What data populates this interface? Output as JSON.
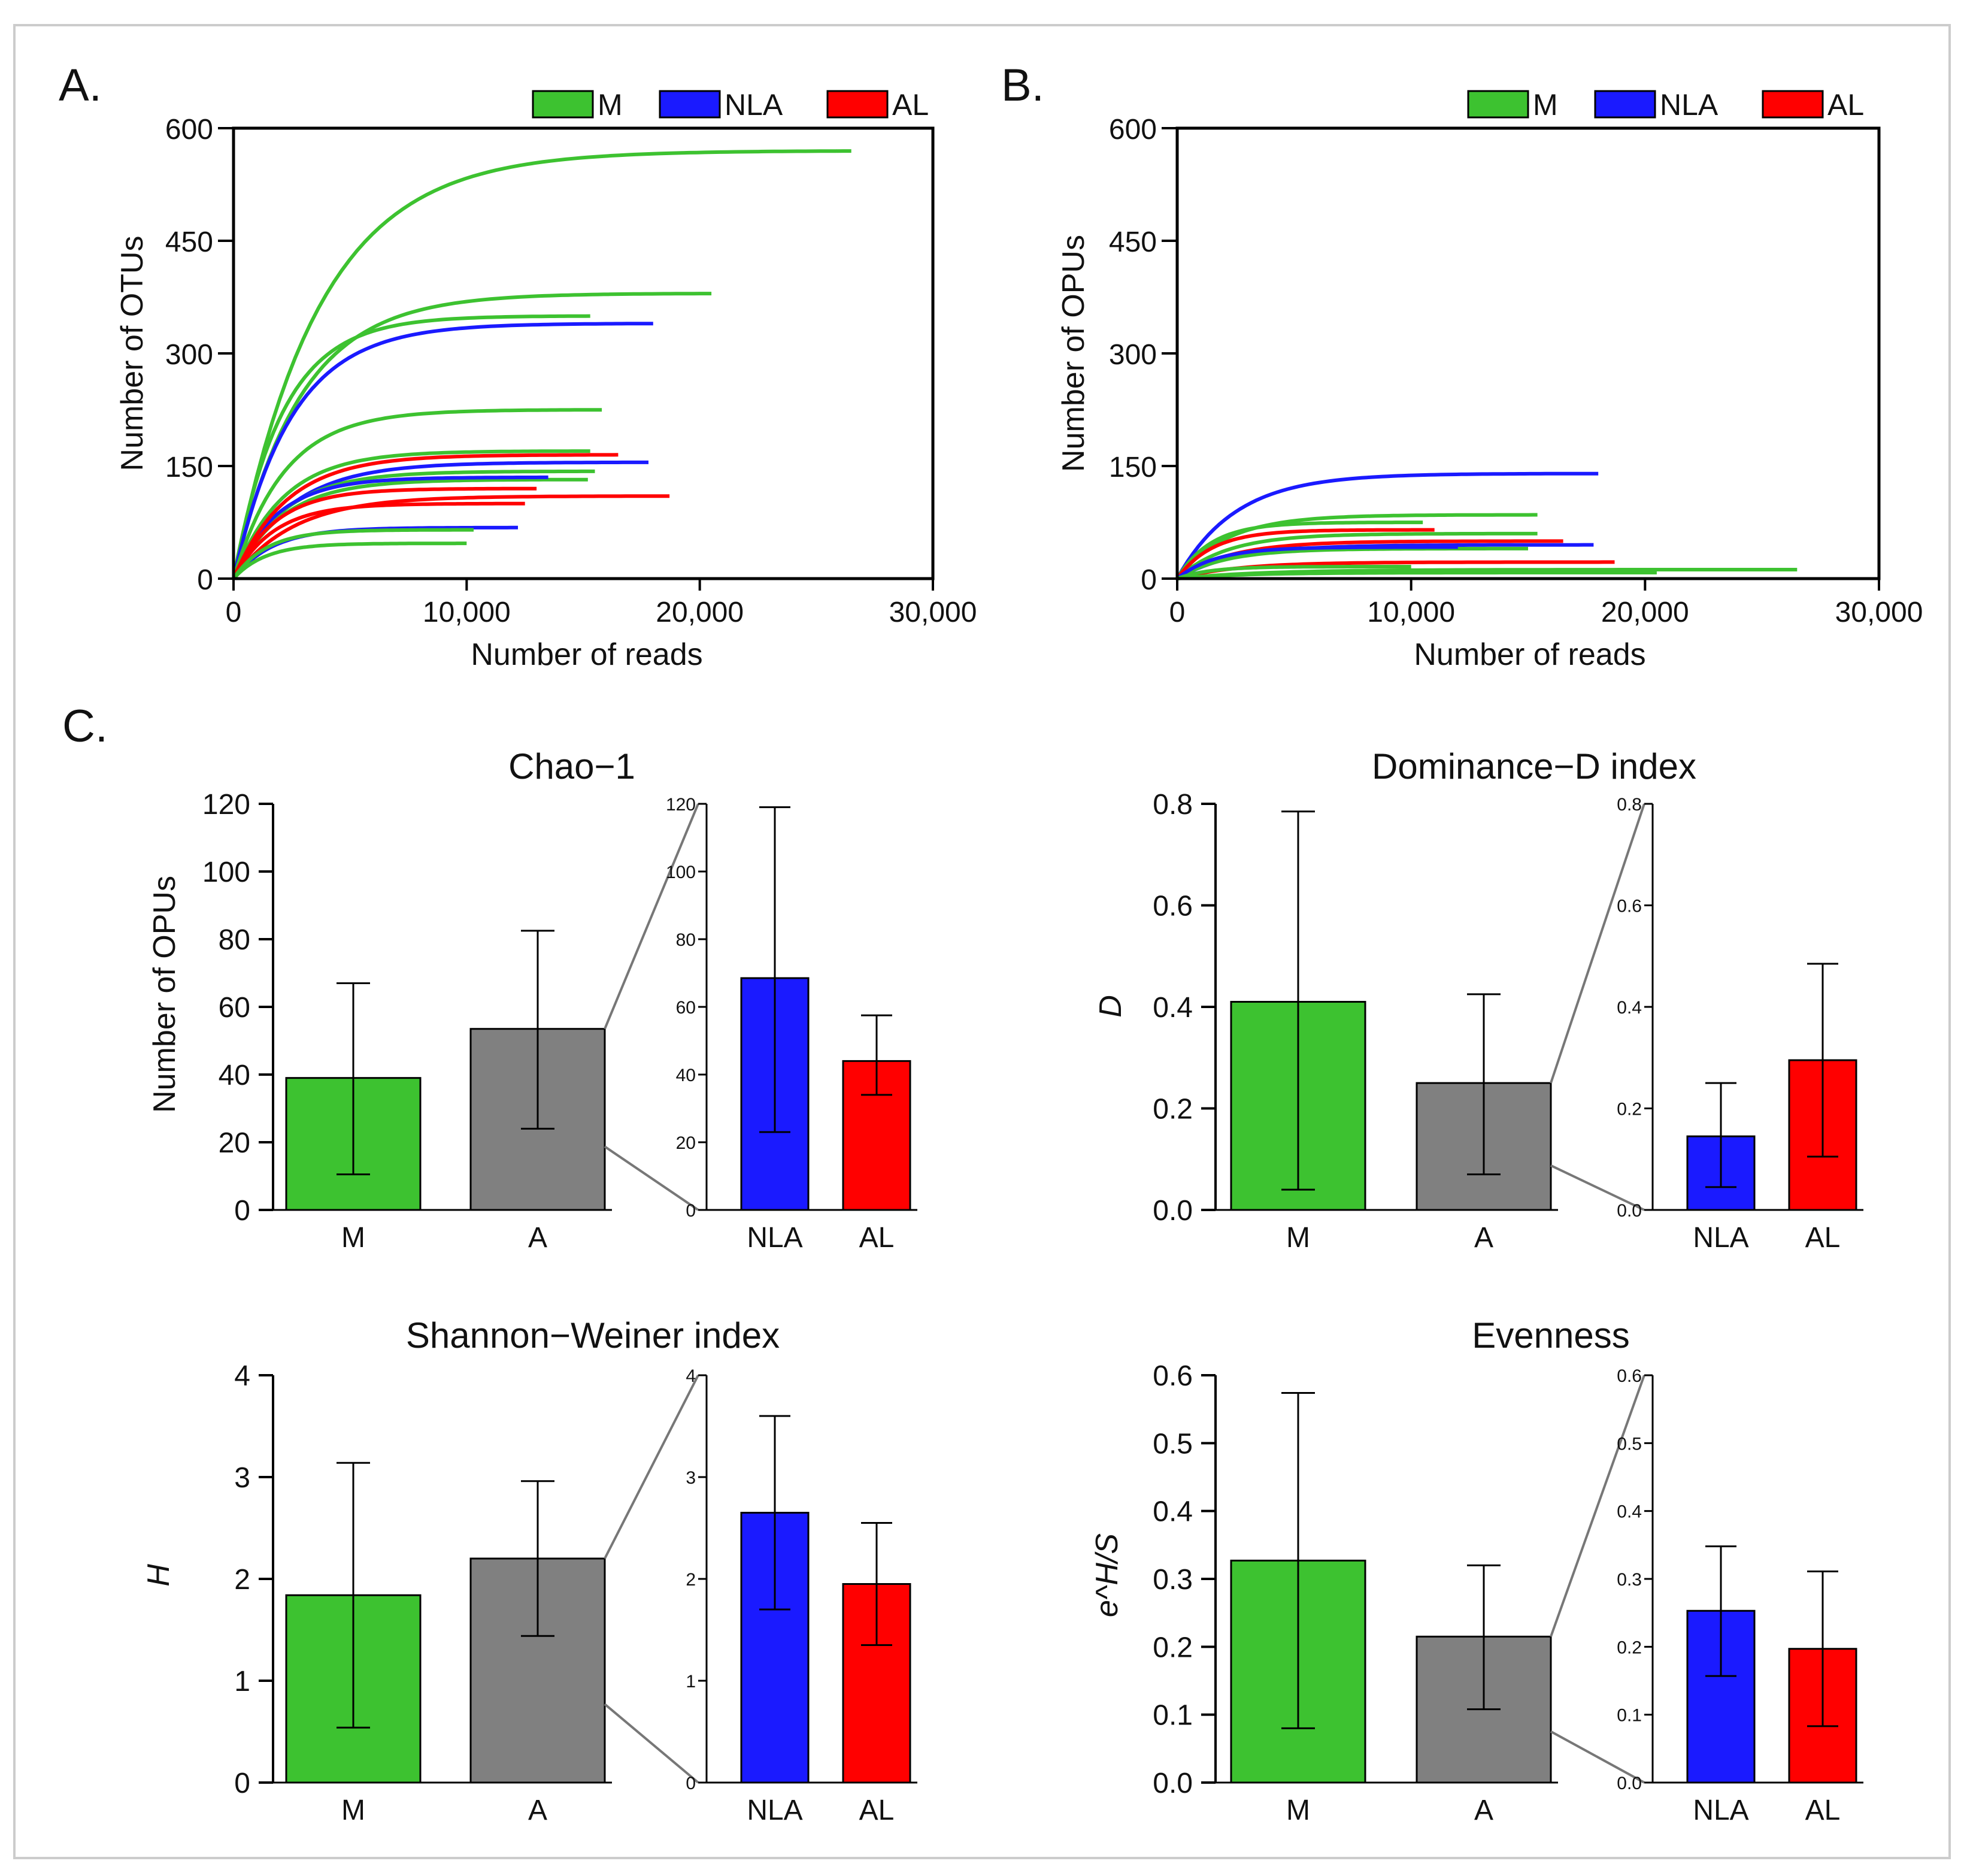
{
  "colors": {
    "M": "#3dc230",
    "NLA": "#1a1aff",
    "AL": "#ff0000",
    "A": "#808080",
    "frame": "#cccccc"
  },
  "chart_data": [
    {
      "type": "line",
      "panel": "A.",
      "xlabel": "Number of reads",
      "ylabel": "Number of OTUs",
      "xlim": [
        0,
        30000
      ],
      "ylim": [
        0,
        600
      ],
      "xticks": [
        0,
        10000,
        20000,
        30000
      ],
      "xtick_labels": [
        "0",
        "10,000",
        "20,000",
        "30,000"
      ],
      "yticks": [
        0,
        150,
        300,
        450,
        600
      ],
      "ytick_labels": [
        "0",
        "150",
        "300",
        "450",
        "600"
      ],
      "legend": [
        {
          "label": "M",
          "group": "M"
        },
        {
          "label": "NLA",
          "group": "NLA"
        },
        {
          "label": "AL",
          "group": "AL"
        }
      ],
      "series": [
        {
          "group": "M",
          "max_reads": 26500,
          "asymptote": 570
        },
        {
          "group": "M",
          "max_reads": 20500,
          "asymptote": 380
        },
        {
          "group": "M",
          "max_reads": 15300,
          "asymptote": 350
        },
        {
          "group": "NLA",
          "max_reads": 18000,
          "asymptote": 340
        },
        {
          "group": "M",
          "max_reads": 15800,
          "asymptote": 225
        },
        {
          "group": "M",
          "max_reads": 15300,
          "asymptote": 170
        },
        {
          "group": "NLA",
          "max_reads": 17800,
          "asymptote": 155
        },
        {
          "group": "M",
          "max_reads": 15500,
          "asymptote": 143
        },
        {
          "group": "M",
          "max_reads": 15200,
          "asymptote": 132
        },
        {
          "group": "NLA",
          "max_reads": 13500,
          "asymptote": 135
        },
        {
          "group": "AL",
          "max_reads": 16500,
          "asymptote": 165
        },
        {
          "group": "AL",
          "max_reads": 13000,
          "asymptote": 120
        },
        {
          "group": "AL",
          "max_reads": 18700,
          "asymptote": 110
        },
        {
          "group": "AL",
          "max_reads": 12500,
          "asymptote": 100
        },
        {
          "group": "NLA",
          "max_reads": 12200,
          "asymptote": 68
        },
        {
          "group": "M",
          "max_reads": 10300,
          "asymptote": 65
        },
        {
          "group": "M",
          "max_reads": 10000,
          "asymptote": 47
        }
      ]
    },
    {
      "type": "line",
      "panel": "B.",
      "xlabel": "Number of reads",
      "ylabel": "Number of OPUs",
      "xlim": [
        0,
        30000
      ],
      "ylim": [
        0,
        600
      ],
      "xticks": [
        0,
        10000,
        20000,
        30000
      ],
      "xtick_labels": [
        "0",
        "10,000",
        "20,000",
        "30,000"
      ],
      "yticks": [
        0,
        150,
        300,
        450,
        600
      ],
      "ytick_labels": [
        "0",
        "150",
        "300",
        "450",
        "600"
      ],
      "legend": [
        {
          "label": "M",
          "group": "M"
        },
        {
          "label": "NLA",
          "group": "NLA"
        },
        {
          "label": "AL",
          "group": "AL"
        }
      ],
      "series": [
        {
          "group": "NLA",
          "max_reads": 18000,
          "asymptote": 140
        },
        {
          "group": "M",
          "max_reads": 15400,
          "asymptote": 85
        },
        {
          "group": "M",
          "max_reads": 10500,
          "asymptote": 75
        },
        {
          "group": "M",
          "max_reads": 15400,
          "asymptote": 60
        },
        {
          "group": "AL",
          "max_reads": 11000,
          "asymptote": 65
        },
        {
          "group": "AL",
          "max_reads": 16500,
          "asymptote": 50
        },
        {
          "group": "NLA",
          "max_reads": 17800,
          "asymptote": 45
        },
        {
          "group": "M",
          "max_reads": 15000,
          "asymptote": 40
        },
        {
          "group": "NLA",
          "max_reads": 12000,
          "asymptote": 42
        },
        {
          "group": "AL",
          "max_reads": 18700,
          "asymptote": 22
        },
        {
          "group": "M",
          "max_reads": 26500,
          "asymptote": 12
        },
        {
          "group": "M",
          "max_reads": 20500,
          "asymptote": 8
        },
        {
          "group": "M",
          "max_reads": 10000,
          "asymptote": 16
        }
      ]
    },
    {
      "type": "bar",
      "panel": "C.",
      "title": "Chao−1",
      "ylabel": "Number of OPUs",
      "ylim": [
        0,
        120
      ],
      "yticks": [
        0,
        20,
        40,
        60,
        80,
        100,
        120
      ],
      "ytick_labels": [
        "0",
        "20",
        "40",
        "60",
        "80",
        "100",
        "120"
      ],
      "main": [
        {
          "label": "M",
          "group": "M",
          "value": 39,
          "err_low": 10.5,
          "err_high": 67
        },
        {
          "label": "A",
          "group": "A",
          "value": 53.5,
          "err_low": 24,
          "err_high": 82.5
        }
      ],
      "inset": [
        {
          "label": "NLA",
          "group": "NLA",
          "value": 68.5,
          "err_low": 23,
          "err_high": 119
        },
        {
          "label": "AL",
          "group": "AL",
          "value": 44,
          "err_low": 34,
          "err_high": 57.5
        }
      ]
    },
    {
      "type": "bar",
      "title": "Dominance−D index",
      "ylabel": "D",
      "ylim": [
        0,
        0.8
      ],
      "yticks": [
        0,
        0.2,
        0.4,
        0.6,
        0.8
      ],
      "ytick_labels": [
        "0.0",
        "0.2",
        "0.4",
        "0.6",
        "0.8"
      ],
      "main": [
        {
          "label": "M",
          "group": "M",
          "value": 0.41,
          "err_low": 0.04,
          "err_high": 0.785
        },
        {
          "label": "A",
          "group": "A",
          "value": 0.25,
          "err_low": 0.07,
          "err_high": 0.425
        }
      ],
      "inset": [
        {
          "label": "NLA",
          "group": "NLA",
          "value": 0.145,
          "err_low": 0.045,
          "err_high": 0.25
        },
        {
          "label": "AL",
          "group": "AL",
          "value": 0.295,
          "err_low": 0.105,
          "err_high": 0.485
        }
      ]
    },
    {
      "type": "bar",
      "title": "Shannon−Weiner index",
      "ylabel": "H",
      "ylim": [
        0,
        4
      ],
      "yticks": [
        0,
        1,
        2,
        3,
        4
      ],
      "ytick_labels": [
        "0",
        "1",
        "2",
        "3",
        "4"
      ],
      "main": [
        {
          "label": "M",
          "group": "M",
          "value": 1.84,
          "err_low": 0.54,
          "err_high": 3.14
        },
        {
          "label": "A",
          "group": "A",
          "value": 2.2,
          "err_low": 1.44,
          "err_high": 2.96
        }
      ],
      "inset": [
        {
          "label": "NLA",
          "group": "NLA",
          "value": 2.65,
          "err_low": 1.7,
          "err_high": 3.6
        },
        {
          "label": "AL",
          "group": "AL",
          "value": 1.95,
          "err_low": 1.35,
          "err_high": 2.55
        }
      ]
    },
    {
      "type": "bar",
      "title": "Evenness",
      "ylabel": "e^H/S",
      "ylim": [
        0,
        0.6
      ],
      "yticks": [
        0,
        0.1,
        0.2,
        0.3,
        0.4,
        0.5,
        0.6
      ],
      "ytick_labels": [
        "0.0",
        "0.1",
        "0.2",
        "0.3",
        "0.4",
        "0.5",
        "0.6"
      ],
      "main": [
        {
          "label": "M",
          "group": "M",
          "value": 0.327,
          "err_low": 0.08,
          "err_high": 0.574
        },
        {
          "label": "A",
          "group": "A",
          "value": 0.215,
          "err_low": 0.108,
          "err_high": 0.32
        }
      ],
      "inset": [
        {
          "label": "NLA",
          "group": "NLA",
          "value": 0.253,
          "err_low": 0.157,
          "err_high": 0.348
        },
        {
          "label": "AL",
          "group": "AL",
          "value": 0.197,
          "err_low": 0.083,
          "err_high": 0.311
        }
      ]
    }
  ]
}
